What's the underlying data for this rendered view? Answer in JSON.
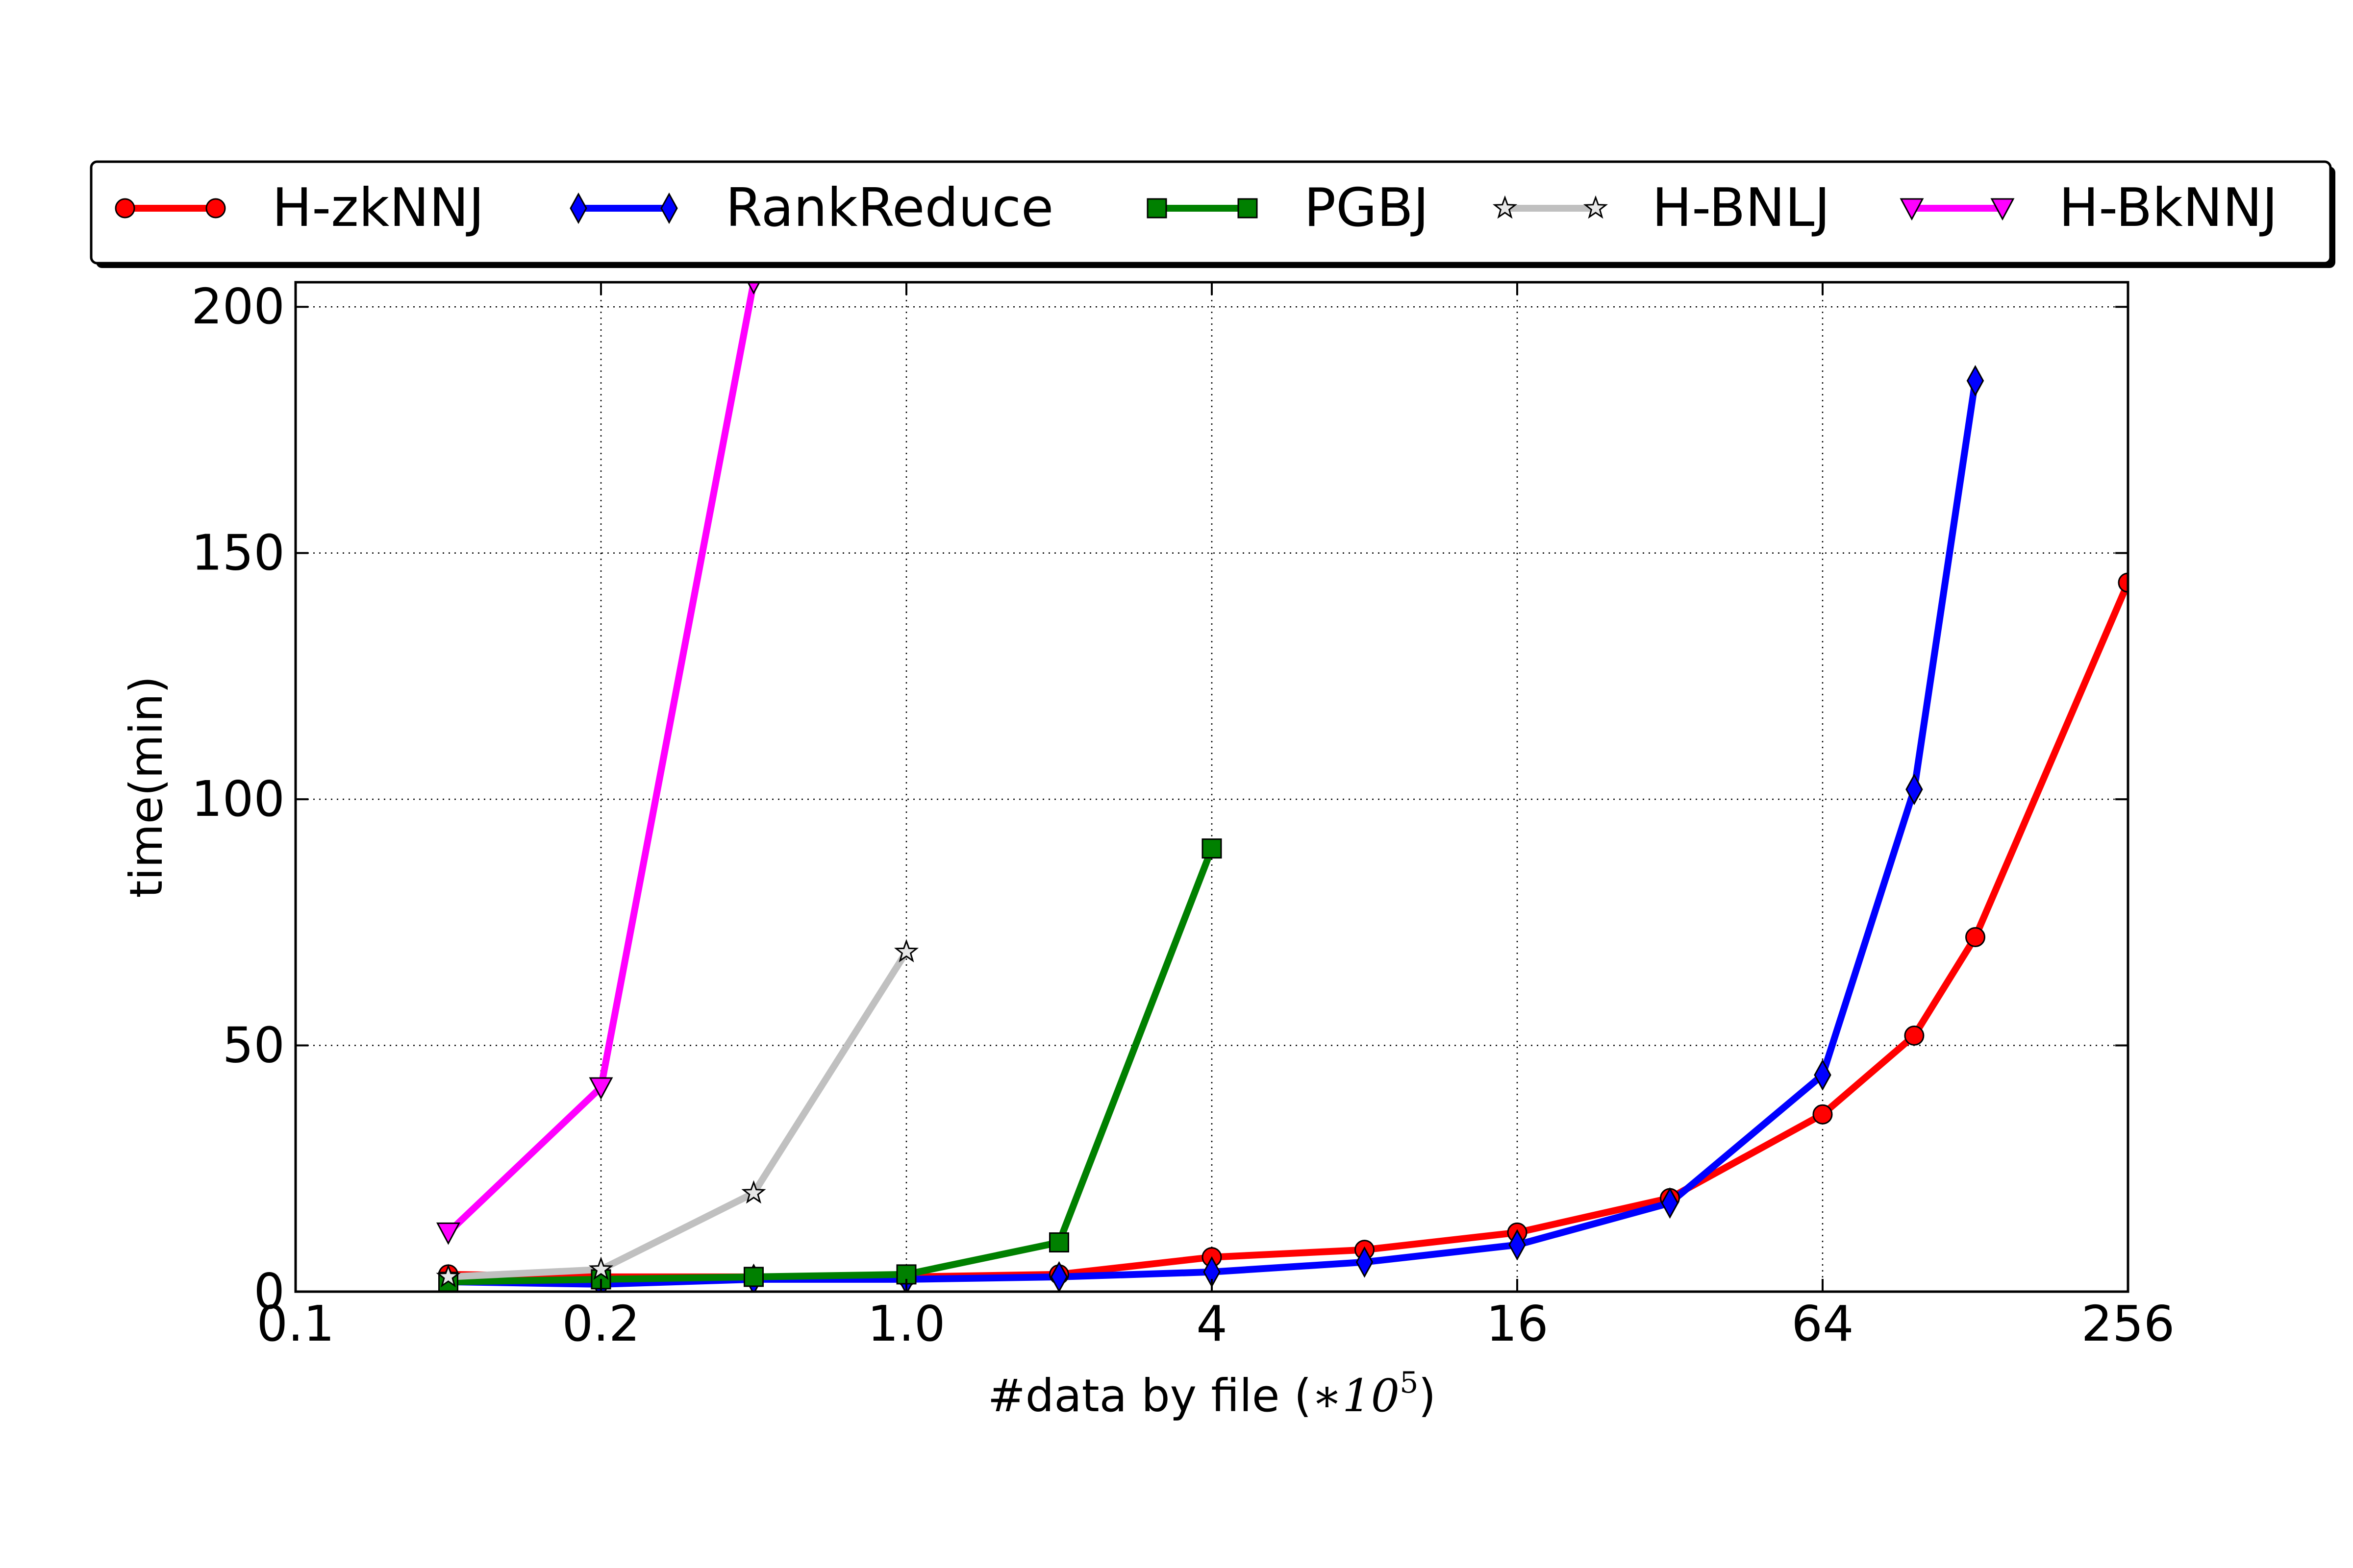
{
  "chart_data": {
    "type": "line",
    "title": "",
    "xlabel": "#data by file (",
    "xlabel_math": "∗10",
    "xlabel_exponent": "5",
    "xlabel_close": ")",
    "ylabel": "time(min)",
    "x_categories": [
      "0.1",
      "0.2",
      "1.0",
      "4",
      "16",
      "64",
      "256"
    ],
    "x_axis_note": "categorical positions; markers also fall halfway between tick labels",
    "xlim": [
      0,
      6
    ],
    "ylim": [
      0,
      205
    ],
    "yticks": [
      "0",
      "50",
      "100",
      "150",
      "200"
    ],
    "ytick_values": [
      0,
      50,
      100,
      150,
      200
    ],
    "grid": true,
    "legend_position": "top (outside plot, single row)",
    "series": [
      {
        "name": "H-zkNNJ",
        "color": "#ff0000",
        "marker": "circle",
        "points": [
          [
            0.5,
            3.5
          ],
          [
            1,
            3
          ],
          [
            1.5,
            3
          ],
          [
            2,
            3
          ],
          [
            2.5,
            3.5
          ],
          [
            3,
            7
          ],
          [
            3.5,
            8.5
          ],
          [
            4,
            12
          ],
          [
            4.5,
            19
          ],
          [
            5,
            36
          ],
          [
            5.3,
            52
          ],
          [
            5.5,
            72
          ],
          [
            6,
            144
          ]
        ]
      },
      {
        "name": "RankReduce",
        "color": "#0000ff",
        "marker": "thin-diamond",
        "points": [
          [
            0.5,
            2
          ],
          [
            1,
            1.5
          ],
          [
            1.5,
            2.5
          ],
          [
            2,
            2.5
          ],
          [
            2.5,
            3
          ],
          [
            3,
            4
          ],
          [
            3.5,
            6
          ],
          [
            4,
            9.5
          ],
          [
            4.5,
            18
          ],
          [
            5,
            44
          ],
          [
            5.3,
            102
          ],
          [
            5.5,
            185
          ]
        ]
      },
      {
        "name": "PGBJ",
        "color": "#008000",
        "marker": "square",
        "points": [
          [
            0.5,
            2
          ],
          [
            1,
            2.5
          ],
          [
            1.5,
            3
          ],
          [
            2,
            3.5
          ],
          [
            2.5,
            10
          ],
          [
            3,
            90
          ]
        ]
      },
      {
        "name": "H-BNLJ",
        "color": "#c0c0c0",
        "marker": "star",
        "points": [
          [
            0.5,
            3
          ],
          [
            1,
            4.5
          ],
          [
            1.5,
            20
          ],
          [
            2,
            69
          ]
        ]
      },
      {
        "name": "H-BkNNJ",
        "color": "#ff00ff",
        "marker": "triangle-down",
        "points": [
          [
            0.5,
            12
          ],
          [
            1,
            41.5
          ],
          [
            1.5,
            205
          ]
        ]
      }
    ]
  }
}
